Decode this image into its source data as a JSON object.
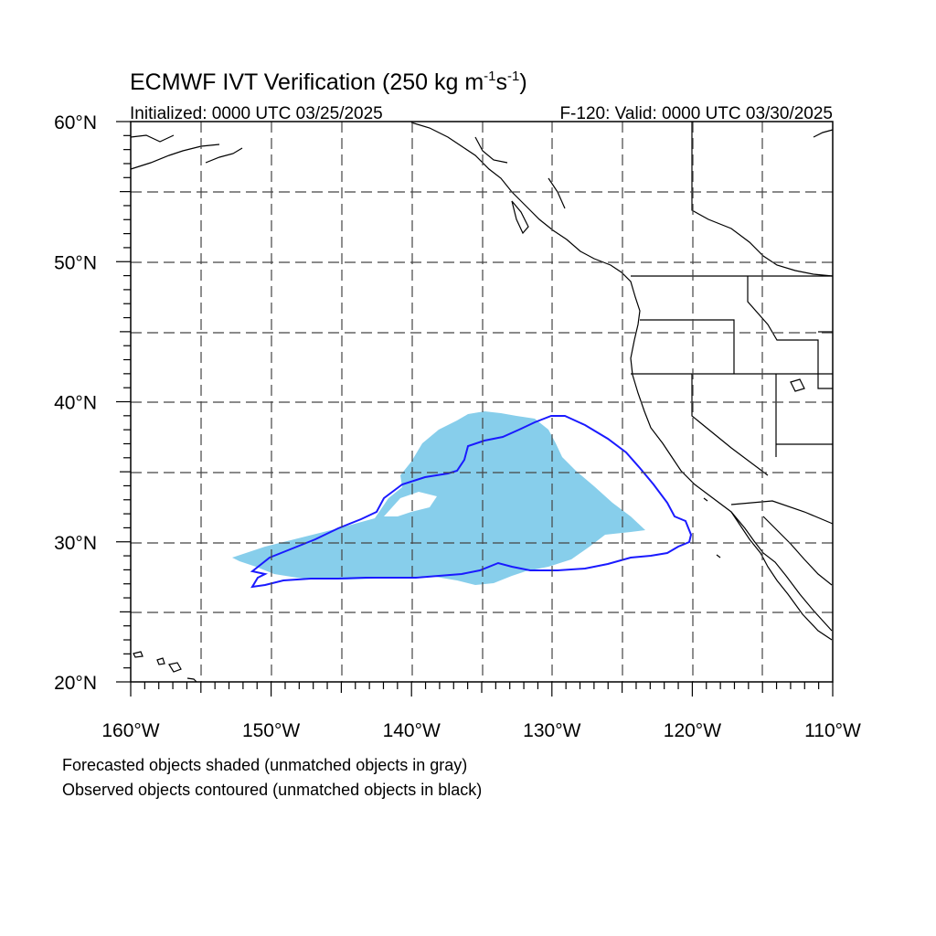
{
  "title": {
    "main": "ECMWF IVT Verification (250 kg m",
    "sup1": "-1",
    "mid": "s",
    "sup2": "-1",
    "end": ")"
  },
  "initialized": "Initialized: 0000 UTC 03/25/2025",
  "valid": "F-120: Valid: 0000 UTC 03/30/2025",
  "axes": {
    "lon_labels": [
      "160°W",
      "150°W",
      "140°W",
      "130°W",
      "120°W",
      "110°W"
    ],
    "lat_labels": [
      "20°N",
      "30°N",
      "40°N",
      "50°N",
      "60°N"
    ],
    "lon_range": [
      -160,
      -110
    ],
    "lat_range": [
      20,
      60
    ],
    "grid": "dashed every 5 degrees"
  },
  "notes": {
    "forecast": "Forecasted objects shaded (unmatched objects in gray)",
    "observed": "Observed objects contoured (unmatched objects in black)"
  },
  "colors": {
    "forecast_fill": "#87ceeb",
    "observed_contour": "#1a1aff",
    "coastline": "#000000",
    "grid": "#555555"
  },
  "objects": {
    "forecast_shape": "light blue shaded forecast IVT object over Pacific",
    "observed_shape": "blue contoured observed IVT object"
  }
}
